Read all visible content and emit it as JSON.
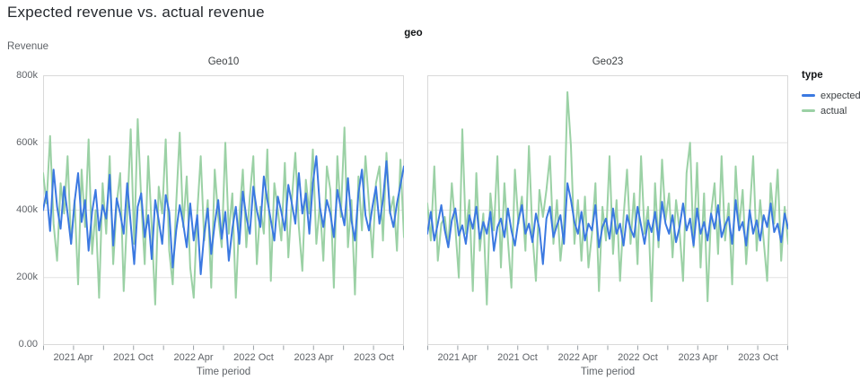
{
  "title": "Expected revenue vs. actual revenue",
  "facet_header": "geo",
  "colors": {
    "expected": "#3b79e1",
    "actual": "#9bd1a5",
    "grid": "#e2e2e2",
    "border": "#d9d9d9",
    "tick": "#9aa0a6",
    "axis_text": "#5f6368",
    "title_text": "#25292e"
  },
  "legend": {
    "title": "type",
    "items": [
      {
        "label": "expected",
        "color_key": "expected"
      },
      {
        "label": "actual",
        "color_key": "actual"
      }
    ]
  },
  "y_axis": {
    "title": "Revenue",
    "tick_labels": [
      "800k",
      "600k",
      "400k",
      "200k",
      "0.00"
    ],
    "max_k": 800,
    "gridlines_k": [
      600,
      400,
      200
    ]
  },
  "x_axis": {
    "title": "Time period",
    "months_total": 36,
    "minor_tick_every_months": 3,
    "labeled_ticks": [
      {
        "month": 3,
        "label": "2021 Apr"
      },
      {
        "month": 9,
        "label": "2021 Oct"
      },
      {
        "month": 15,
        "label": "2022 Apr"
      },
      {
        "month": 21,
        "label": "2022 Oct"
      },
      {
        "month": 27,
        "label": "2023 Apr"
      },
      {
        "month": 33,
        "label": "2023 Oct"
      }
    ]
  },
  "chart_data": [
    {
      "type": "line",
      "facet": "Geo10",
      "x_start": "2021-01",
      "x_end": "2023-12",
      "ylim_k": [
        0,
        800
      ],
      "legend_position": "right",
      "grid": true,
      "series": [
        {
          "name": "expected",
          "values_k": [
            400,
            455,
            338,
            520,
            410,
            345,
            470,
            390,
            300,
            425,
            510,
            365,
            430,
            280,
            395,
            460,
            340,
            415,
            375,
            505,
            295,
            435,
            390,
            330,
            480,
            360,
            240,
            410,
            450,
            320,
            385,
            255,
            430,
            370,
            300,
            445,
            395,
            230,
            340,
            415,
            360,
            290,
            420,
            310,
            385,
            210,
            330,
            405,
            270,
            360,
            430,
            315,
            395,
            250,
            345,
            410,
            300,
            455,
            380,
            330,
            470,
            400,
            350,
            500,
            430,
            370,
            310,
            440,
            395,
            340,
            475,
            420,
            360,
            510,
            390,
            450,
            330,
            480,
            560,
            410,
            350,
            430,
            390,
            320,
            460,
            405,
            355,
            495,
            370,
            310,
            450,
            520,
            385,
            340,
            410,
            470,
            360,
            430,
            545,
            395,
            350,
            420,
            475,
            530
          ]
        },
        {
          "name": "actual",
          "values_k": [
            510,
            420,
            620,
            360,
            250,
            480,
            390,
            560,
            300,
            430,
            180,
            520,
            350,
            610,
            270,
            400,
            140,
            480,
            330,
            560,
            240,
            420,
            510,
            160,
            390,
            640,
            300,
            670,
            430,
            240,
            560,
            350,
            120,
            470,
            390,
            610,
            280,
            180,
            420,
            630,
            350,
            500,
            230,
            140,
            390,
            560,
            310,
            430,
            170,
            520,
            380,
            290,
            600,
            330,
            450,
            140,
            380,
            520,
            290,
            440,
            560,
            240,
            410,
            330,
            580,
            190,
            480,
            400,
            310,
            540,
            260,
            430,
            570,
            350,
            220,
            490,
            390,
            580,
            300,
            420,
            250,
            530,
            460,
            170,
            560,
            380,
            645,
            290,
            430,
            150,
            500,
            340,
            560,
            420,
            260,
            480,
            530,
            310,
            570,
            390,
            440,
            280,
            550,
            320
          ]
        }
      ]
    },
    {
      "type": "line",
      "facet": "Geo23",
      "x_start": "2021-01",
      "x_end": "2023-12",
      "ylim_k": [
        0,
        800
      ],
      "legend_position": "right",
      "grid": true,
      "series": [
        {
          "name": "expected",
          "values_k": [
            330,
            395,
            310,
            360,
            415,
            340,
            290,
            370,
            405,
            325,
            355,
            300,
            385,
            345,
            410,
            315,
            365,
            330,
            395,
            280,
            350,
            375,
            320,
            405,
            340,
            295,
            370,
            415,
            330,
            360,
            305,
            390,
            345,
            240,
            375,
            410,
            320,
            355,
            385,
            300,
            480,
            430,
            365,
            330,
            395,
            310,
            360,
            340,
            415,
            290,
            350,
            375,
            315,
            405,
            330,
            360,
            295,
            385,
            345,
            320,
            410,
            355,
            300,
            370,
            335,
            395,
            310,
            425,
            360,
            330,
            385,
            305,
            350,
            420,
            340,
            375,
            295,
            405,
            330,
            365,
            310,
            390,
            345,
            415,
            320,
            355,
            380,
            300,
            430,
            340,
            365,
            295,
            400,
            330,
            370,
            310,
            385,
            350,
            420,
            335,
            360,
            305,
            390,
            345
          ]
        },
        {
          "name": "actual",
          "values_k": [
            420,
            310,
            530,
            250,
            360,
            380,
            290,
            480,
            350,
            200,
            640,
            330,
            430,
            160,
            510,
            280,
            390,
            120,
            450,
            340,
            560,
            230,
            480,
            310,
            170,
            520,
            360,
            440,
            280,
            590,
            330,
            190,
            460,
            380,
            460,
            560,
            300,
            430,
            250,
            360,
            750,
            590,
            300,
            430,
            250,
            440,
            230,
            330,
            480,
            160,
            410,
            310,
            560,
            270,
            430,
            190,
            380,
            520,
            300,
            450,
            240,
            560,
            330,
            410,
            130,
            480,
            290,
            550,
            370,
            450,
            260,
            430,
            340,
            190,
            510,
            600,
            290,
            540,
            230,
            450,
            130,
            390,
            480,
            270,
            560,
            310,
            420,
            180,
            530,
            350,
            460,
            240,
            390,
            560,
            280,
            430,
            310,
            190,
            480,
            360,
            520,
            250,
            410,
            300
          ]
        }
      ]
    }
  ]
}
